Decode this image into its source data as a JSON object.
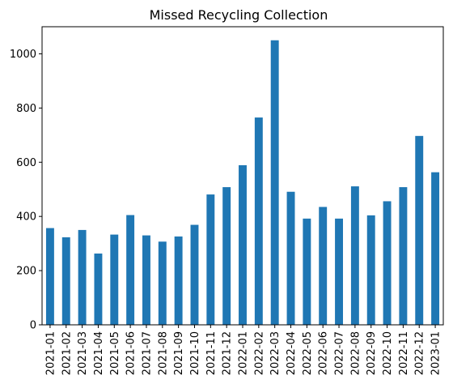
{
  "chart_data": {
    "type": "bar",
    "title": "Missed Recycling Collection",
    "xlabel": "",
    "ylabel": "",
    "categories": [
      "2021-01",
      "2021-02",
      "2021-03",
      "2021-04",
      "2021-05",
      "2021-06",
      "2021-07",
      "2021-08",
      "2021-09",
      "2021-10",
      "2021-11",
      "2021-12",
      "2022-01",
      "2022-02",
      "2022-03",
      "2022-04",
      "2022-05",
      "2022-06",
      "2022-07",
      "2022-08",
      "2022-09",
      "2022-10",
      "2022-11",
      "2022-12",
      "2023-01"
    ],
    "values": [
      357,
      323,
      350,
      263,
      333,
      405,
      330,
      307,
      326,
      369,
      481,
      508,
      589,
      765,
      1050,
      491,
      392,
      435,
      392,
      511,
      404,
      456,
      508,
      697,
      563
    ],
    "ylim": [
      0,
      1100
    ],
    "yticks": [
      0,
      200,
      400,
      600,
      800,
      1000
    ],
    "bar_color": "#1f77b4",
    "grid": false,
    "legend": "none"
  }
}
